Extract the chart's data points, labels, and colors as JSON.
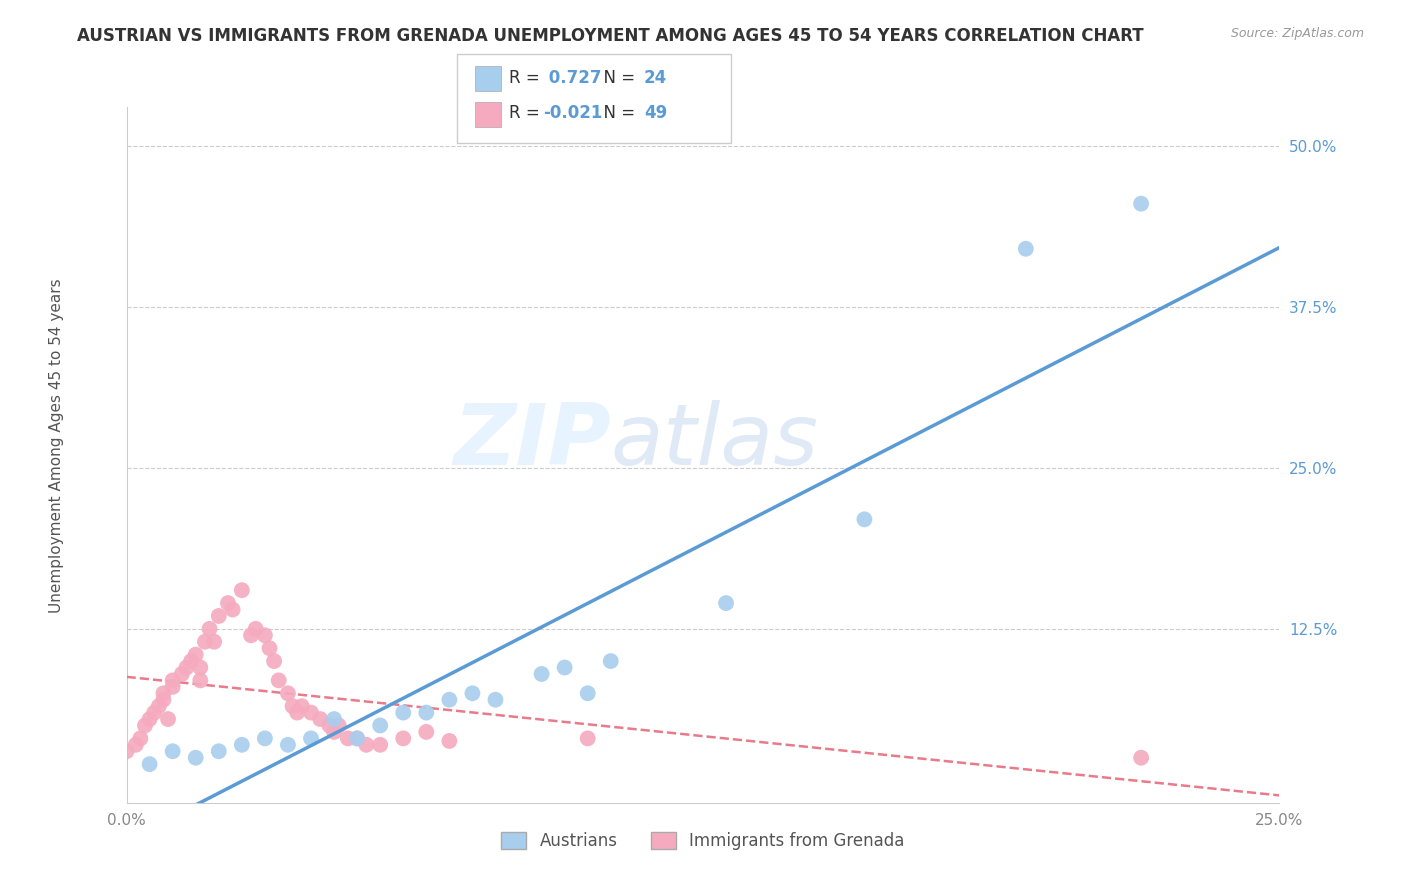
{
  "title": "AUSTRIAN VS IMMIGRANTS FROM GRENADA UNEMPLOYMENT AMONG AGES 45 TO 54 YEARS CORRELATION CHART",
  "source": "Source: ZipAtlas.com",
  "ylabel": "Unemployment Among Ages 45 to 54 years",
  "xlim": [
    0.0,
    0.25
  ],
  "ylim": [
    -0.01,
    0.53
  ],
  "xticks": [
    0.0,
    0.05,
    0.1,
    0.15,
    0.2,
    0.25
  ],
  "xtick_labels": [
    "0.0%",
    "",
    "",
    "",
    "",
    "25.0%"
  ],
  "yticks": [
    0.0,
    0.125,
    0.25,
    0.375,
    0.5
  ],
  "ytick_labels": [
    "",
    "12.5%",
    "25.0%",
    "37.5%",
    "50.0%"
  ],
  "blue_R": 0.727,
  "blue_N": 24,
  "pink_R": -0.021,
  "pink_N": 49,
  "blue_color": "#A8CEEE",
  "pink_color": "#F5AABF",
  "blue_line_color": "#5B9BD5",
  "pink_line_color": "#E87A8A",
  "watermark_zip": "ZIP",
  "watermark_atlas": "atlas",
  "legend_label_blue": "Austrians",
  "legend_label_pink": "Immigrants from Grenada",
  "blue_points_x": [
    0.005,
    0.01,
    0.015,
    0.02,
    0.025,
    0.03,
    0.035,
    0.04,
    0.045,
    0.05,
    0.055,
    0.06,
    0.065,
    0.07,
    0.075,
    0.08,
    0.09,
    0.095,
    0.1,
    0.105,
    0.13,
    0.16,
    0.195,
    0.22
  ],
  "blue_points_y": [
    0.02,
    0.03,
    0.025,
    0.03,
    0.035,
    0.04,
    0.035,
    0.04,
    0.055,
    0.04,
    0.05,
    0.06,
    0.06,
    0.07,
    0.075,
    0.07,
    0.09,
    0.095,
    0.075,
    0.1,
    0.145,
    0.21,
    0.42,
    0.455
  ],
  "pink_points_x": [
    0.0,
    0.002,
    0.003,
    0.004,
    0.005,
    0.006,
    0.007,
    0.008,
    0.008,
    0.009,
    0.01,
    0.01,
    0.012,
    0.013,
    0.014,
    0.015,
    0.016,
    0.016,
    0.017,
    0.018,
    0.019,
    0.02,
    0.022,
    0.023,
    0.025,
    0.027,
    0.028,
    0.03,
    0.031,
    0.032,
    0.033,
    0.035,
    0.036,
    0.037,
    0.038,
    0.04,
    0.042,
    0.044,
    0.045,
    0.046,
    0.048,
    0.05,
    0.052,
    0.055,
    0.06,
    0.065,
    0.07,
    0.1,
    0.22
  ],
  "pink_points_y": [
    0.03,
    0.035,
    0.04,
    0.05,
    0.055,
    0.06,
    0.065,
    0.07,
    0.075,
    0.055,
    0.08,
    0.085,
    0.09,
    0.095,
    0.1,
    0.105,
    0.085,
    0.095,
    0.115,
    0.125,
    0.115,
    0.135,
    0.145,
    0.14,
    0.155,
    0.12,
    0.125,
    0.12,
    0.11,
    0.1,
    0.085,
    0.075,
    0.065,
    0.06,
    0.065,
    0.06,
    0.055,
    0.05,
    0.045,
    0.05,
    0.04,
    0.04,
    0.035,
    0.035,
    0.04,
    0.045,
    0.038,
    0.04,
    0.025
  ],
  "background_color": "#FFFFFF",
  "grid_color": "#CCCCCC",
  "title_fontsize": 12,
  "axis_label_fontsize": 11,
  "tick_fontsize": 11
}
